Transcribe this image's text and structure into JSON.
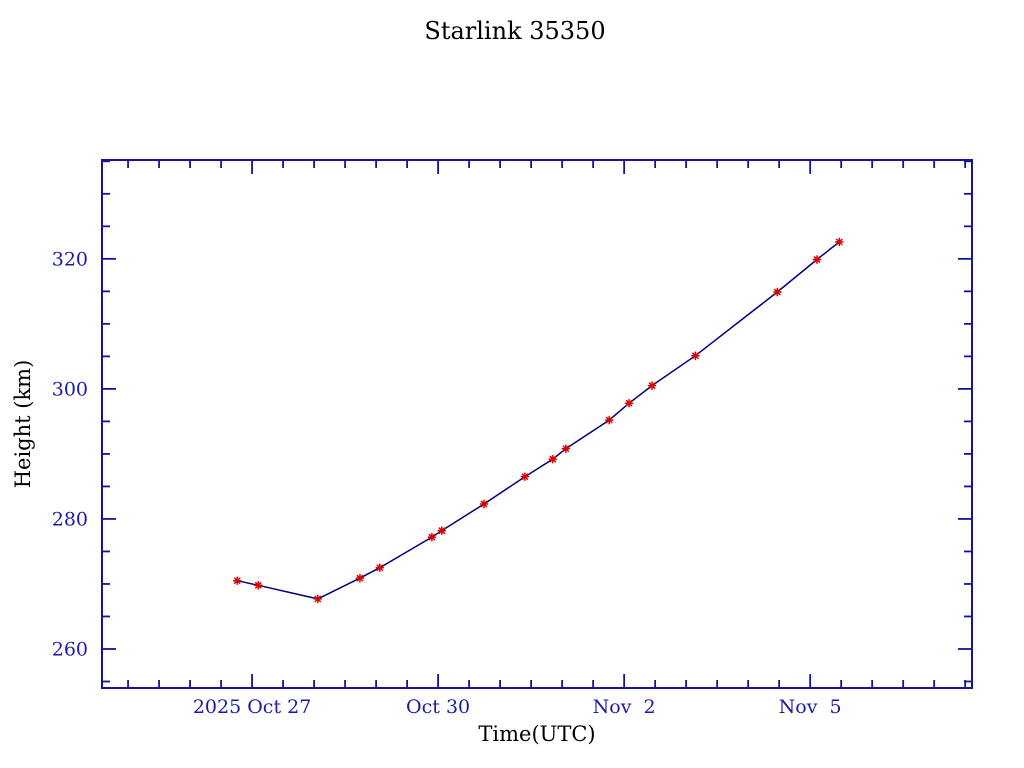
{
  "window": {
    "background": "#ffffff"
  },
  "chart": {
    "title": "Starlink 35350",
    "xlabel": "Time(UTC)",
    "ylabel": "Height (km)",
    "colors": {
      "background": "#ffffff",
      "text": "#1a1aaa",
      "axis": "#14149a",
      "line": "#000080",
      "marker": "#d80000"
    }
  },
  "chart_data": {
    "type": "line",
    "title": "Starlink 35350",
    "xlabel": "Time(UTC)",
    "ylabel": "Height (km)",
    "series_name": "Height",
    "marker_style": "red-asterisk",
    "grid": false,
    "legend": null,
    "x_unit": "days since 2025 Oct 27 00:00 UTC (read from axis)",
    "points": [
      [
        -0.24,
        270.5
      ],
      [
        0.1,
        269.8
      ],
      [
        1.06,
        267.7
      ],
      [
        1.74,
        270.9
      ],
      [
        2.06,
        272.5
      ],
      [
        2.9,
        277.2
      ],
      [
        3.06,
        278.2
      ],
      [
        3.74,
        282.3
      ],
      [
        4.4,
        286.5
      ],
      [
        4.85,
        289.2
      ],
      [
        5.06,
        290.8
      ],
      [
        5.76,
        295.2
      ],
      [
        6.08,
        297.8
      ],
      [
        6.45,
        300.5
      ],
      [
        7.15,
        305.1
      ],
      [
        8.47,
        314.9
      ],
      [
        9.11,
        319.9
      ],
      [
        9.47,
        322.6
      ]
    ],
    "xlim_days": [
      -2.42,
      11.61
    ],
    "ylim": [
      254.0,
      335.2
    ],
    "x_major_ticks": [
      {
        "day": 0,
        "label": "2025 Oct 27"
      },
      {
        "day": 3,
        "label": "Oct 30"
      },
      {
        "day": 6,
        "label": "Nov  2"
      },
      {
        "day": 9,
        "label": "Nov  5"
      }
    ],
    "x_minor_interval_days": 0.5,
    "y_major_ticks": [
      {
        "value": 260,
        "label": "260"
      },
      {
        "value": 280,
        "label": "280"
      },
      {
        "value": 300,
        "label": "300"
      },
      {
        "value": 320,
        "label": "320"
      }
    ],
    "y_minor_interval": 5
  }
}
